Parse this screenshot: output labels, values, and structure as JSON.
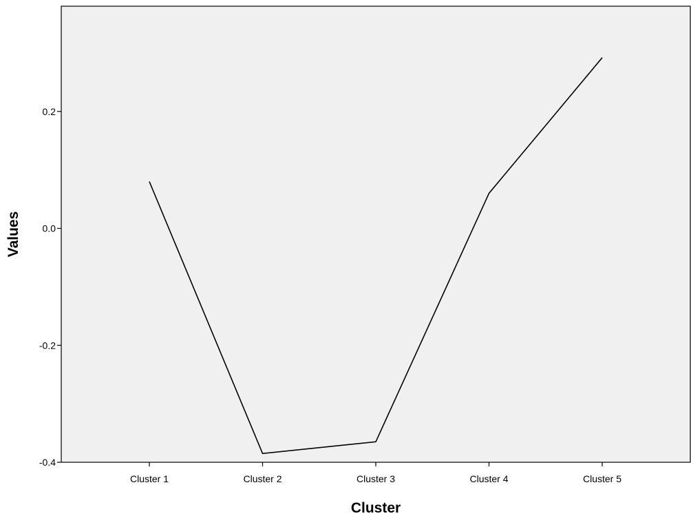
{
  "chart_data": {
    "type": "line",
    "categories": [
      "Cluster 1",
      "Cluster 2",
      "Cluster 3",
      "Cluster 4",
      "Cluster 5"
    ],
    "series": [
      {
        "values": [
          0.08,
          -0.385,
          -0.365,
          0.06,
          0.292
        ]
      }
    ],
    "xlabel": "Cluster",
    "ylabel": "Values",
    "ylim": [
      -0.4,
      0.38
    ],
    "yticks": [
      -0.4,
      -0.2,
      0.0,
      0.2
    ],
    "ytick_labels": [
      "-0.4",
      "-0.2",
      "0.0",
      "0.2"
    ],
    "grid": false,
    "colors": {
      "plot_background": "#f0f0f0",
      "line": "#000000",
      "axis": "#000000"
    }
  }
}
